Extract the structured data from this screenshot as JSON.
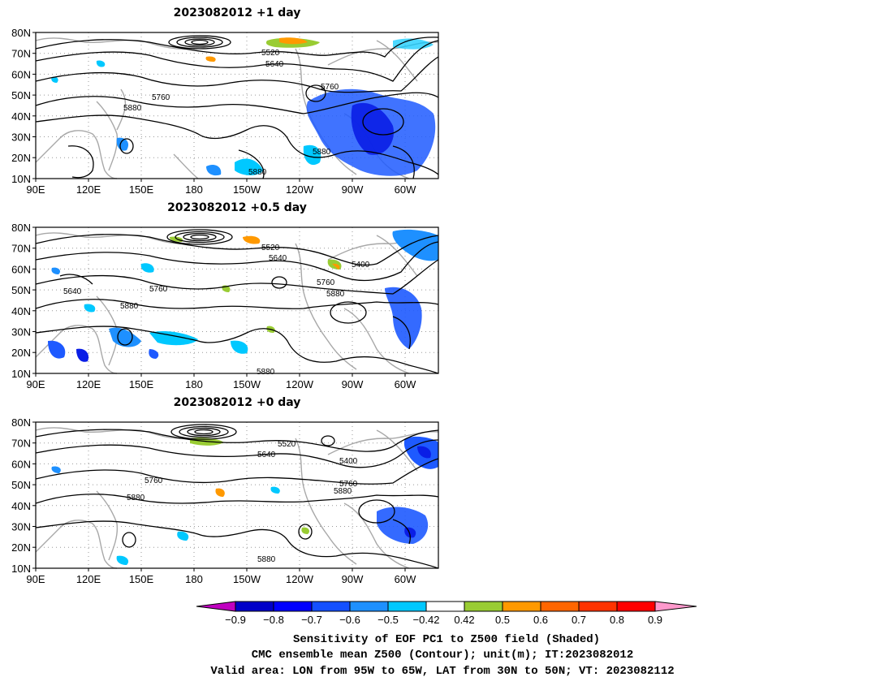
{
  "panels": [
    {
      "title": "2023082012  +1 day",
      "lat_labels": [
        "80N",
        "70N",
        "60N",
        "50N",
        "40N",
        "30N",
        "20N",
        "10N"
      ],
      "lon_labels": [
        "90E",
        "120E",
        "150E",
        "180",
        "150W",
        "120W",
        "90W",
        "60W"
      ],
      "contour_labels": [
        "5520",
        "5640",
        "5760",
        "5760",
        "5880",
        "5880",
        "5880"
      ]
    },
    {
      "title": "2023082012  +0.5 day",
      "lat_labels": [
        "80N",
        "70N",
        "60N",
        "50N",
        "40N",
        "30N",
        "20N",
        "10N"
      ],
      "lon_labels": [
        "90E",
        "120E",
        "150E",
        "180",
        "150W",
        "120W",
        "90W",
        "60W"
      ],
      "contour_labels": [
        "5520",
        "5640",
        "5400",
        "5640",
        "5760",
        "5760",
        "5880",
        "5880",
        "5880"
      ]
    },
    {
      "title": "2023082012  +0 day",
      "lat_labels": [
        "80N",
        "70N",
        "60N",
        "50N",
        "40N",
        "30N",
        "20N",
        "10N"
      ],
      "lon_labels": [
        "90E",
        "120E",
        "150E",
        "180",
        "150W",
        "120W",
        "90W",
        "60W"
      ],
      "contour_labels": [
        "5520",
        "5640",
        "5400",
        "5760",
        "5760",
        "5880",
        "5880",
        "5880"
      ]
    }
  ],
  "colorbar": {
    "labels": [
      "−0.9",
      "−0.8",
      "−0.7",
      "−0.6",
      "−0.5",
      "−0.42",
      "0.42",
      "0.5",
      "0.6",
      "0.7",
      "0.8",
      "0.9"
    ],
    "colors": [
      "#c000c0",
      "#0000c8",
      "#0000ff",
      "#1450ff",
      "#1e90ff",
      "#00c8ff",
      "#ffffff",
      "#99cc33",
      "#ff9900",
      "#ff6600",
      "#ff3300",
      "#ff0000",
      "#ff99cc"
    ]
  },
  "footer": {
    "line1": "Sensitivity of EOF PC1 to Z500 field (Shaded)",
    "line2": "CMC ensemble mean Z500 (Contour); unit(m); IT:2023082012",
    "line3": "Valid area: LON from 95W to 65W, LAT from 30N to 50N; VT: 2023082112"
  }
}
